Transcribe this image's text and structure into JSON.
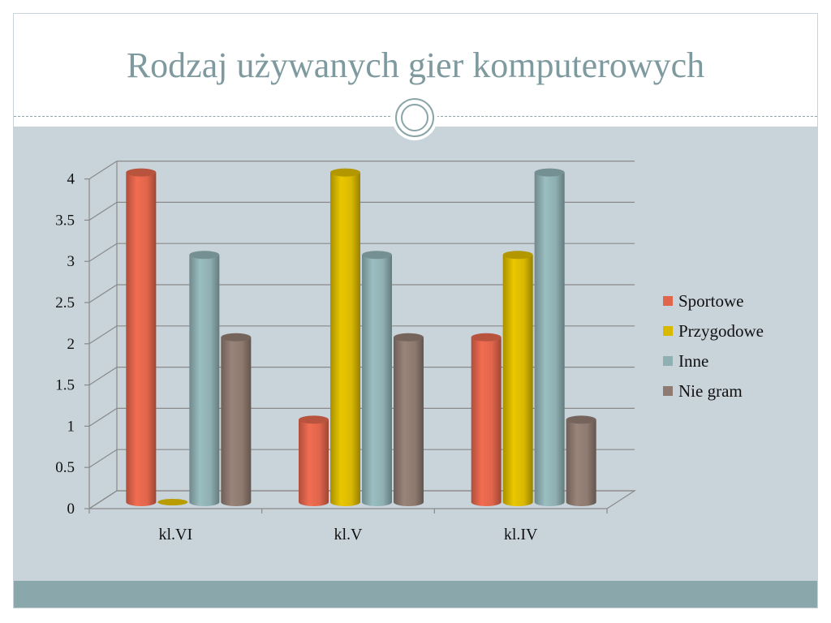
{
  "slide": {
    "title": "Rodzaj używanych gier komputerowych"
  },
  "chart_data": {
    "type": "bar",
    "style": "3d-cylinder",
    "categories": [
      "kl.VI",
      "kl.V",
      "kl.IV"
    ],
    "series": [
      {
        "name": "Sportowe",
        "color": "#e0654b",
        "values": [
          4,
          1,
          2
        ]
      },
      {
        "name": "Przygodowe",
        "color": "#d9b800",
        "values": [
          0,
          4,
          3
        ]
      },
      {
        "name": "Inne",
        "color": "#8fb0b3",
        "values": [
          3,
          3,
          4
        ]
      },
      {
        "name": "Nie gram",
        "color": "#8e7a70",
        "values": [
          2,
          2,
          1
        ]
      }
    ],
    "yticks": [
      "0",
      "0.5",
      "1",
      "1.5",
      "2",
      "2.5",
      "3",
      "3.5",
      "4"
    ],
    "ylim": [
      0,
      4
    ],
    "grid": true,
    "legend": "right"
  }
}
